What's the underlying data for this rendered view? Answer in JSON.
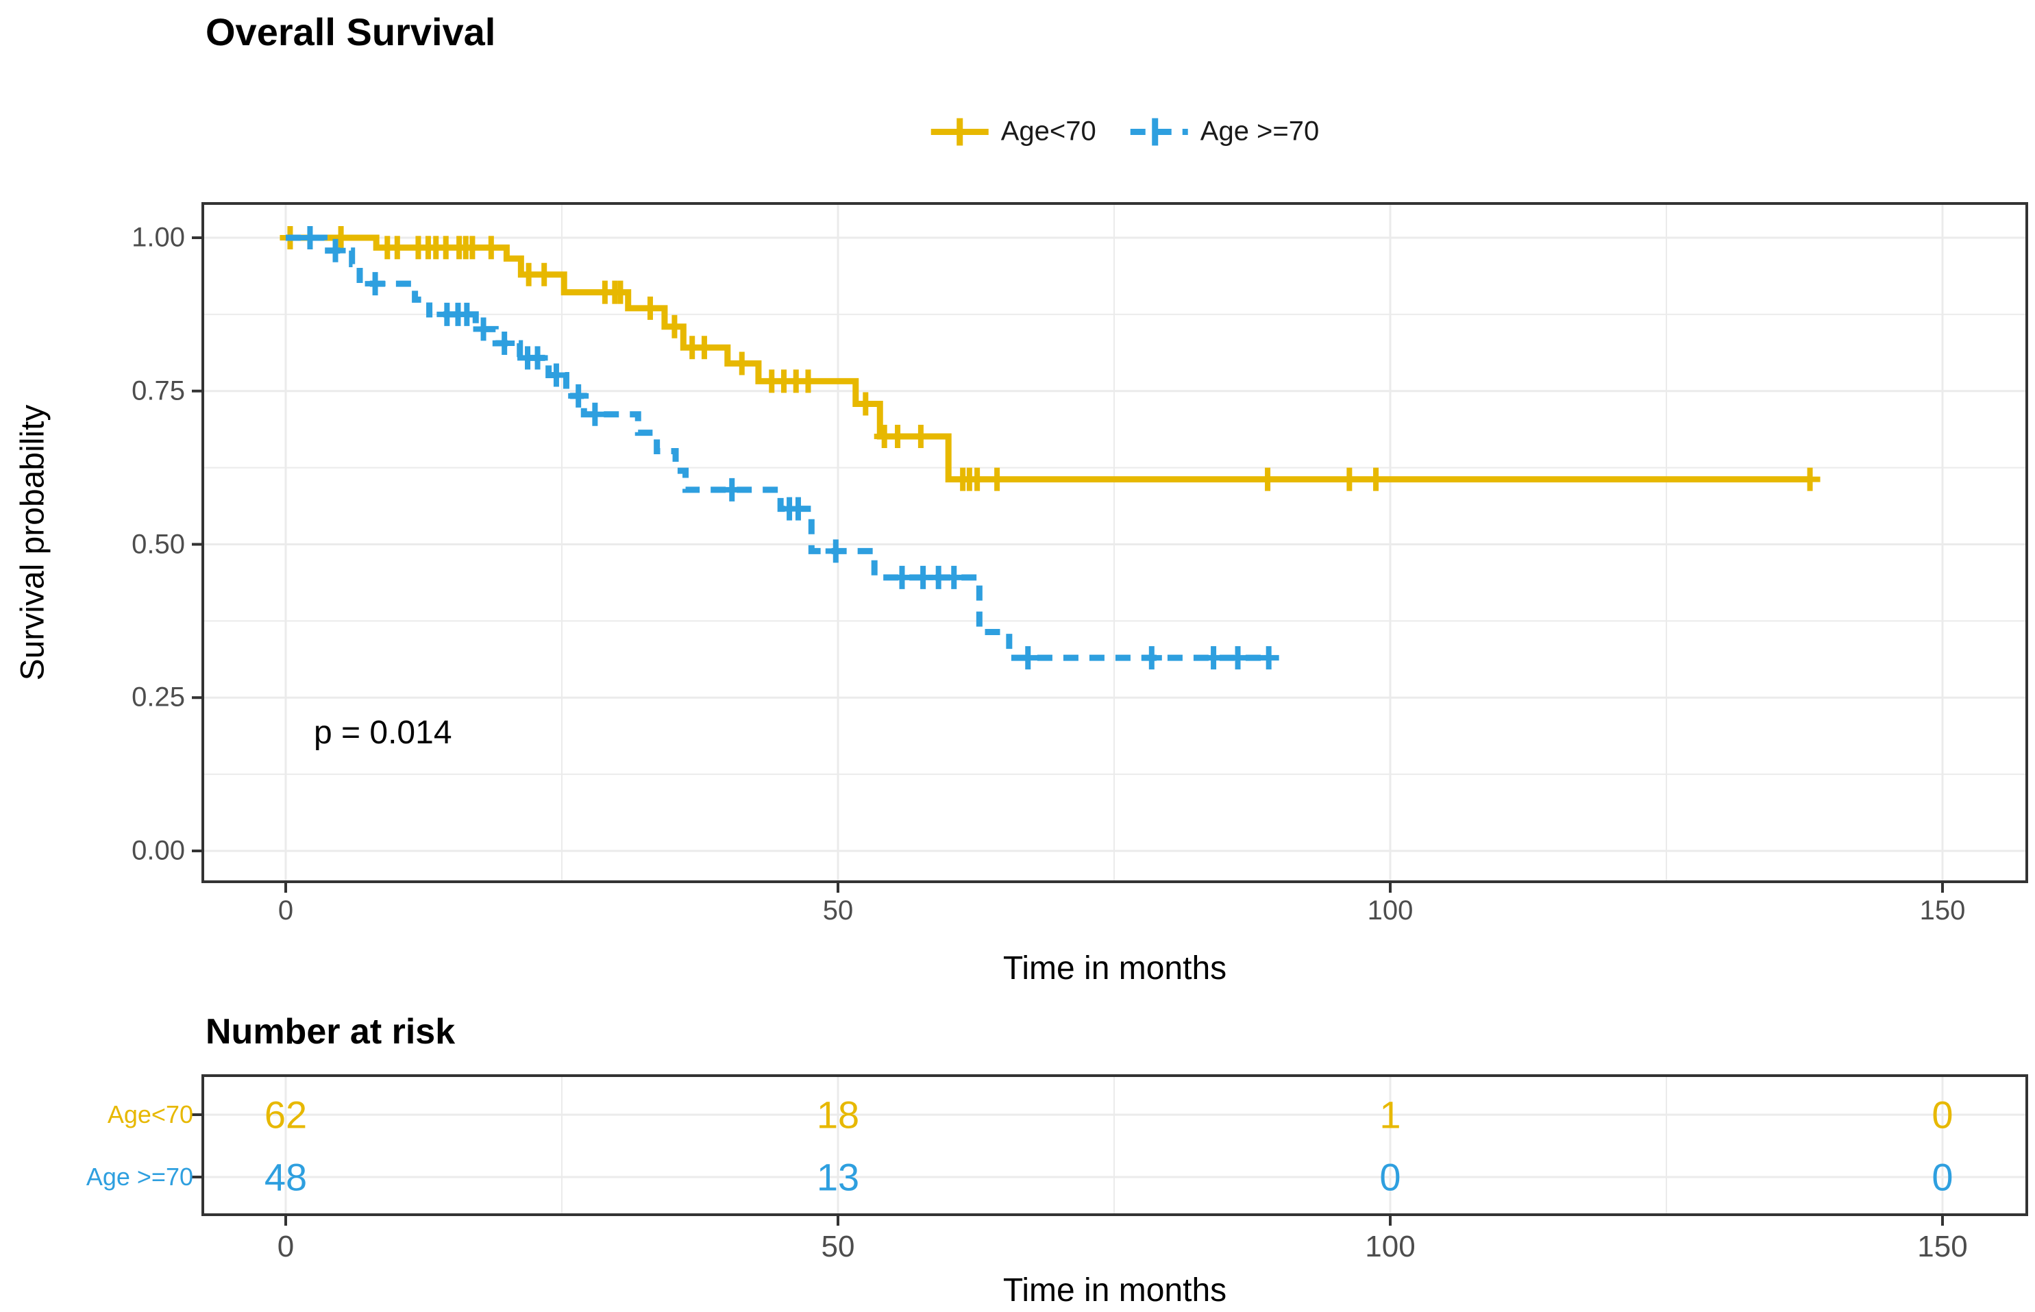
{
  "title": "Overall Survival",
  "p_value_label": "p = 0.014",
  "colors": {
    "group1": "#E7B800",
    "group2": "#2E9FDF",
    "grid": "#EBEBEB",
    "panel_border": "#333333",
    "tick_text": "#4d4d4d",
    "tick_mark": "#333333"
  },
  "legend": {
    "items": [
      {
        "label": "Age<70",
        "color": "#E7B800",
        "dashed": false
      },
      {
        "label": "Age >=70",
        "color": "#2E9FDF",
        "dashed": true
      }
    ]
  },
  "chart_data": {
    "type": "line",
    "subtype": "kaplan-meier-step",
    "title": "Overall Survival",
    "xlabel": "Time in months",
    "ylabel": "Survival probability",
    "x_ticks": [
      0,
      50,
      100,
      150
    ],
    "x_minor_ticks": [
      25,
      75,
      125
    ],
    "y_ticks": [
      0.0,
      0.25,
      0.5,
      0.75,
      1.0
    ],
    "y_minor_ticks": [
      0.125,
      0.375,
      0.625,
      0.875
    ],
    "xlim": [
      -7.5,
      157.6
    ],
    "ylim": [
      -0.05,
      1.056
    ],
    "grid": true,
    "legend_position": "top",
    "annotation": "p = 0.014",
    "series": [
      {
        "name": "Age<70",
        "color": "#E7B800",
        "style": "solid",
        "steps": [
          [
            0,
            1.0
          ],
          [
            8.2,
            0.984
          ],
          [
            20.0,
            0.966
          ],
          [
            21.3,
            0.94
          ],
          [
            25.2,
            0.911
          ],
          [
            31.0,
            0.885
          ],
          [
            34.3,
            0.855
          ],
          [
            36.0,
            0.821
          ],
          [
            40.0,
            0.795
          ],
          [
            42.8,
            0.766
          ],
          [
            51.6,
            0.729
          ],
          [
            53.8,
            0.676
          ],
          [
            60.0,
            0.606
          ]
        ],
        "end_time": 138,
        "censors": [
          [
            0.4,
            1.0
          ],
          [
            5.0,
            1.0
          ],
          [
            9.2,
            0.984
          ],
          [
            10.1,
            0.984
          ],
          [
            12.0,
            0.984
          ],
          [
            12.9,
            0.984
          ],
          [
            13.6,
            0.984
          ],
          [
            14.5,
            0.984
          ],
          [
            15.7,
            0.984
          ],
          [
            16.3,
            0.984
          ],
          [
            16.9,
            0.984
          ],
          [
            18.6,
            0.984
          ],
          [
            22.0,
            0.94
          ],
          [
            23.4,
            0.94
          ],
          [
            28.9,
            0.911
          ],
          [
            29.8,
            0.911
          ],
          [
            30.3,
            0.911
          ],
          [
            33.0,
            0.885
          ],
          [
            35.2,
            0.855
          ],
          [
            36.8,
            0.821
          ],
          [
            37.9,
            0.821
          ],
          [
            41.3,
            0.795
          ],
          [
            44.0,
            0.766
          ],
          [
            45.1,
            0.766
          ],
          [
            46.2,
            0.766
          ],
          [
            47.3,
            0.766
          ],
          [
            52.5,
            0.729
          ],
          [
            54.2,
            0.676
          ],
          [
            55.4,
            0.676
          ],
          [
            57.5,
            0.676
          ],
          [
            61.3,
            0.606
          ],
          [
            61.9,
            0.606
          ],
          [
            62.6,
            0.606
          ],
          [
            64.4,
            0.606
          ],
          [
            88.9,
            0.606
          ],
          [
            96.3,
            0.606
          ],
          [
            98.7,
            0.606
          ],
          [
            138,
            0.606
          ]
        ]
      },
      {
        "name": "Age >=70",
        "color": "#2E9FDF",
        "style": "dashed",
        "steps": [
          [
            0,
            1.0
          ],
          [
            3.5,
            0.979
          ],
          [
            6.0,
            0.957
          ],
          [
            6.7,
            0.925
          ],
          [
            11.7,
            0.899
          ],
          [
            13.0,
            0.875
          ],
          [
            17.2,
            0.851
          ],
          [
            19.0,
            0.828
          ],
          [
            21.2,
            0.804
          ],
          [
            23.8,
            0.776
          ],
          [
            25.4,
            0.742
          ],
          [
            27.0,
            0.712
          ],
          [
            31.9,
            0.682
          ],
          [
            33.6,
            0.652
          ],
          [
            35.3,
            0.62
          ],
          [
            36.2,
            0.589
          ],
          [
            44.8,
            0.558
          ],
          [
            47.6,
            0.489
          ],
          [
            53.3,
            0.446
          ],
          [
            62.8,
            0.357
          ],
          [
            65.5,
            0.315
          ]
        ],
        "end_time": 89,
        "censors": [
          [
            2.2,
            1.0
          ],
          [
            4.5,
            0.979
          ],
          [
            8.1,
            0.925
          ],
          [
            14.6,
            0.875
          ],
          [
            15.6,
            0.875
          ],
          [
            16.4,
            0.875
          ],
          [
            17.9,
            0.851
          ],
          [
            19.8,
            0.828
          ],
          [
            21.9,
            0.804
          ],
          [
            22.8,
            0.804
          ],
          [
            24.5,
            0.776
          ],
          [
            26.5,
            0.742
          ],
          [
            28.0,
            0.712
          ],
          [
            40.4,
            0.589
          ],
          [
            45.6,
            0.558
          ],
          [
            46.4,
            0.558
          ],
          [
            49.8,
            0.489
          ],
          [
            55.8,
            0.446
          ],
          [
            57.7,
            0.446
          ],
          [
            59.1,
            0.446
          ],
          [
            60.5,
            0.446
          ],
          [
            67.2,
            0.315
          ],
          [
            78.4,
            0.315
          ],
          [
            84.0,
            0.315
          ],
          [
            86.2,
            0.315
          ],
          [
            89.0,
            0.315
          ]
        ]
      }
    ]
  },
  "risk_table": {
    "title": "Number at risk",
    "xlabel": "Time in months",
    "times": [
      0,
      50,
      100,
      150
    ],
    "rows": [
      {
        "label": "Age<70",
        "color": "#E7B800",
        "counts": [
          62,
          18,
          1,
          0
        ]
      },
      {
        "label": "Age >=70",
        "color": "#2E9FDF",
        "counts": [
          48,
          13,
          0,
          0
        ]
      }
    ]
  }
}
